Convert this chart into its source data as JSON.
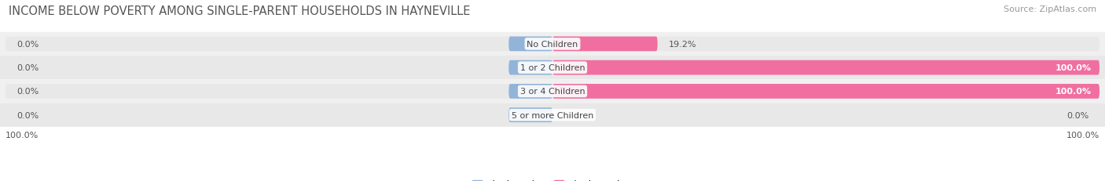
{
  "title": "INCOME BELOW POVERTY AMONG SINGLE-PARENT HOUSEHOLDS IN HAYNEVILLE",
  "source": "Source: ZipAtlas.com",
  "categories": [
    "No Children",
    "1 or 2 Children",
    "3 or 4 Children",
    "5 or more Children"
  ],
  "single_father": [
    0.0,
    0.0,
    0.0,
    0.0
  ],
  "single_mother": [
    19.2,
    100.0,
    100.0,
    0.0
  ],
  "father_color": "#92b4d8",
  "mother_color": "#f06fa0",
  "bar_bg_color": "#e8e8e8",
  "row_bg_even": "#f0f0f0",
  "row_bg_odd": "#e8e8e8",
  "label_color": "#444444",
  "value_color": "#555555",
  "title_color": "#555555",
  "source_color": "#999999",
  "title_fontsize": 10.5,
  "label_fontsize": 8,
  "tick_fontsize": 8,
  "source_fontsize": 8,
  "figsize": [
    14.06,
    2.32
  ],
  "dpi": 100,
  "bar_scale": 100
}
